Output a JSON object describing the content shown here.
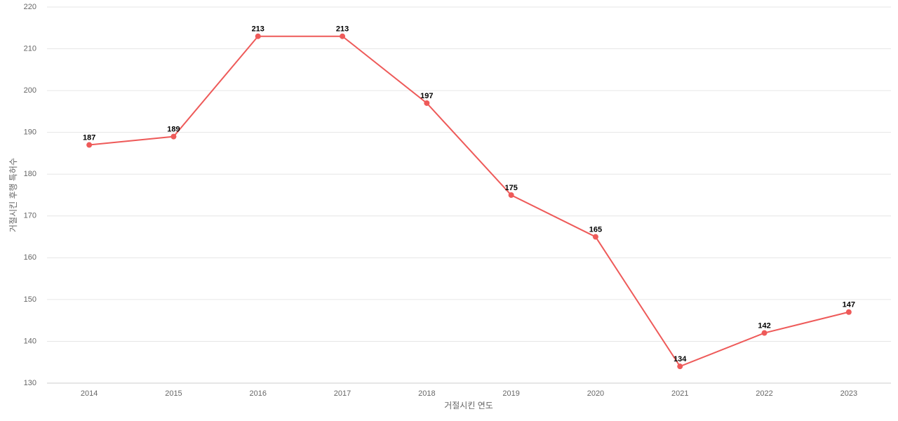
{
  "chart_data": {
    "type": "line",
    "x_label": "거절시킨 연도",
    "y_label": "거절시킨 후행 특허수",
    "categories": [
      "2014",
      "2015",
      "2016",
      "2017",
      "2018",
      "2019",
      "2020",
      "2021",
      "2022",
      "2023"
    ],
    "series": [
      {
        "name": "거절시킨 후행 특허수",
        "color": "#ee5a59",
        "values": [
          187,
          189,
          213,
          213,
          197,
          175,
          165,
          134,
          142,
          147
        ]
      }
    ],
    "ylim": [
      130,
      220
    ],
    "yticks": [
      130,
      140,
      150,
      160,
      170,
      180,
      190,
      200,
      210,
      220
    ],
    "grid": true
  }
}
